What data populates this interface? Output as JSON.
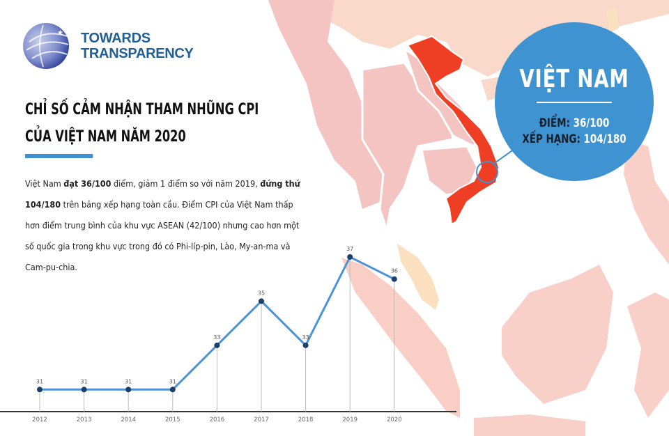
{
  "brand": {
    "line1": "TOWARDS",
    "line2": "TRANSPARENCY",
    "color": "#1f5f96"
  },
  "title": {
    "line1": "CHỈ SỐ CẢM NHẬN THAM NHŨNG CPI",
    "line2": "CỦA VIỆT NAM NĂM 2020"
  },
  "body": {
    "p1": "Việt Nam ",
    "b1": "đạt 36/100",
    "p2": " điểm, giảm 1 điểm so với năm 2019, ",
    "b2": "đứng thứ 104/180",
    "p3": " trên bảng xếp hạng toàn cầu. Điểm CPI của Việt Nam thấp hơn điểm trung bình của khu vực ASEAN (42/100) nhưng cao hơn một số quốc gia trong khu vực trong đó có Phi-líp-pin, Lào, My-an-ma và Cam-pu-chia."
  },
  "callout": {
    "country": "VIỆT NAM",
    "score_label": "ĐIỂM:",
    "score_value": "36/100",
    "rank_label": "XẾP HẠNG:",
    "rank_value": "104/180",
    "color": "#3f93d1"
  },
  "map_colors": {
    "highlight": "#ee3f24",
    "neighbor": "#f4c4c2",
    "other": "#f9d9c9",
    "accent": "#fbe0c0"
  },
  "chart_data": {
    "type": "line",
    "categories": [
      "2012",
      "2013",
      "2014",
      "2015",
      "2016",
      "2017",
      "2018",
      "2019",
      "2020"
    ],
    "values": [
      31,
      31,
      31,
      31,
      33,
      35,
      33,
      37,
      36
    ],
    "ylim": [
      30,
      37
    ],
    "grid": false,
    "line_color": "#4a93d6",
    "marker_color": "#1b3f6b"
  }
}
